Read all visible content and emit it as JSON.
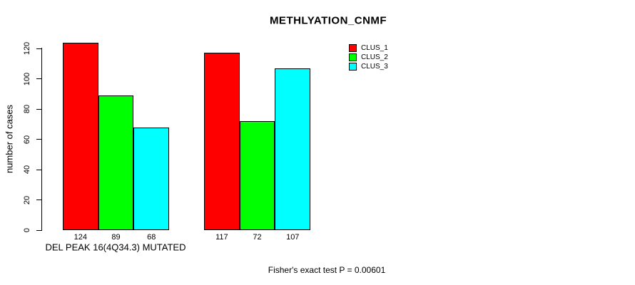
{
  "chart_data": {
    "type": "bar",
    "title": "METHLYATION_CNMF",
    "ylabel": "number of cases",
    "xlabel": "DEL PEAK 16(4Q34.3) MUTATED",
    "annotation": "Fisher's exact test P = 0.00601",
    "ylim": [
      0,
      120
    ],
    "yticks": [
      0,
      20,
      40,
      60,
      80,
      100,
      120
    ],
    "grid": false,
    "legend_position": "top-right",
    "bar_value_labels_shown": true,
    "n_groups": 2,
    "series": [
      {
        "name": "CLUS_1",
        "color": "#ff0000",
        "values": [
          124,
          117
        ]
      },
      {
        "name": "CLUS_2",
        "color": "#00ff00",
        "values": [
          89,
          72
        ]
      },
      {
        "name": "CLUS_3",
        "color": "#00ffff",
        "values": [
          68,
          107
        ]
      }
    ],
    "group_bar_labels": [
      [
        "124",
        "89",
        "68"
      ],
      [
        "117",
        "72",
        "107"
      ]
    ],
    "colors": {
      "axis": "#000000",
      "text": "#000000",
      "background": "#ffffff",
      "bar_border": "#000000"
    }
  }
}
